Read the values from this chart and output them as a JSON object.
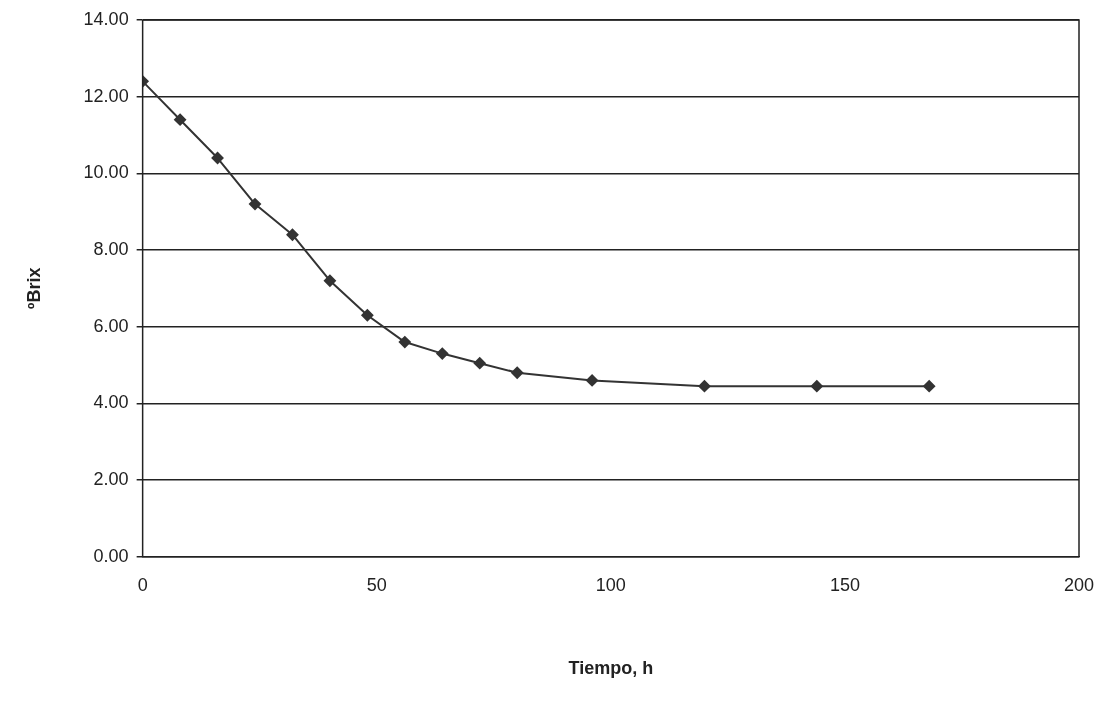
{
  "chart_data": {
    "type": "line",
    "xlabel": "Tiempo, h",
    "ylabel": "ºBrix",
    "x": [
      0,
      8,
      16,
      24,
      32,
      40,
      48,
      56,
      64,
      72,
      80,
      96,
      120,
      144,
      168
    ],
    "series": [
      {
        "color": "#333333",
        "values": [
          12.4,
          11.4,
          10.4,
          9.2,
          8.4,
          7.2,
          6.3,
          5.6,
          5.3,
          5.05,
          4.8,
          4.6,
          4.45,
          4.45,
          4.45
        ]
      }
    ],
    "xlim": [
      0,
      200
    ],
    "xticks": [
      0,
      50,
      100,
      150,
      200
    ],
    "ylim": [
      0,
      14
    ],
    "yticks": [
      {
        "value": 0,
        "label": "0.00"
      },
      {
        "value": 2,
        "label": "2.00"
      },
      {
        "value": 4,
        "label": "4.00"
      },
      {
        "value": 6,
        "label": "6.00"
      },
      {
        "value": 8,
        "label": "8.00"
      },
      {
        "value": 10,
        "label": "10.00"
      },
      {
        "value": 12,
        "label": "12.00"
      },
      {
        "value": 14,
        "label": "14.00"
      }
    ],
    "grid": "y",
    "legend": false,
    "marker": "diamond",
    "line_style": "solid"
  }
}
